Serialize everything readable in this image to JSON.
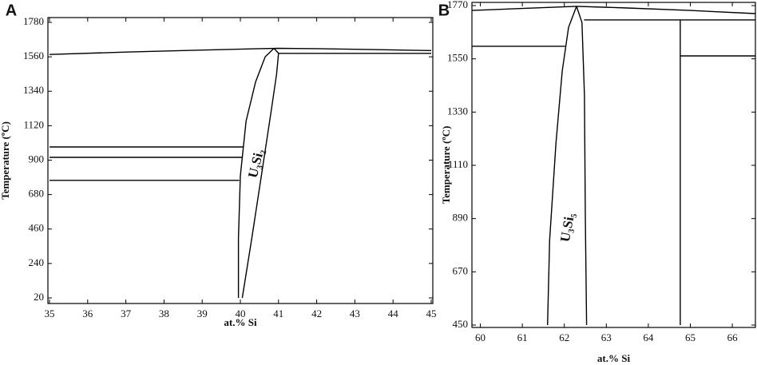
{
  "chart_data": [
    {
      "type": "line",
      "label": "A",
      "x_label": "at.% Si",
      "y_label": "Temperature (ºC)",
      "annotation": "U₃Si₂",
      "xlim": [
        35,
        45
      ],
      "ylim": [
        20,
        1780
      ],
      "xticks": [
        35,
        36,
        37,
        38,
        39,
        40,
        41,
        42,
        43,
        44,
        45
      ],
      "yticks": [
        20,
        240,
        460,
        680,
        900,
        1120,
        1340,
        1560,
        1780
      ],
      "series": [
        {
          "color": "#000000",
          "x": [
            35,
            37,
            39,
            40.5,
            41,
            42,
            43.5,
            45
          ],
          "values": [
            1575,
            1590,
            1603,
            1612,
            1614,
            1612,
            1606,
            1600
          ]
        },
        {
          "color": "#000000",
          "x": [
            35,
            40.08
          ],
          "values": [
            984,
            984
          ]
        },
        {
          "color": "#000000",
          "x": [
            35,
            40.05
          ],
          "values": [
            918,
            918
          ]
        },
        {
          "color": "#000000",
          "x": [
            35,
            39.97
          ],
          "values": [
            771,
            771
          ]
        },
        {
          "color": "#000000",
          "x": [
            41.0,
            45
          ],
          "values": [
            1582,
            1582
          ]
        },
        {
          "color": "#000000",
          "x": [
            39.95,
            39.95,
            40.0,
            40.15,
            40.4,
            40.65,
            40.88
          ],
          "values": [
            20,
            400,
            800,
            1150,
            1400,
            1560,
            1614
          ]
        },
        {
          "color": "#000000",
          "x": [
            40.05,
            40.3,
            40.55,
            40.8,
            40.95,
            41.0,
            40.88
          ],
          "values": [
            20,
            400,
            800,
            1200,
            1450,
            1582,
            1614
          ]
        }
      ]
    },
    {
      "type": "line",
      "label": "B",
      "x_label": "at.% Si",
      "y_label": "Temperature (ºC)",
      "annotation": "U₃Si₅",
      "xlim": [
        59.8,
        66.55
      ],
      "ylim": [
        450,
        1770
      ],
      "xticks": [
        60,
        61,
        62,
        63,
        64,
        65,
        66
      ],
      "yticks": [
        450,
        670,
        890,
        1110,
        1330,
        1550,
        1770
      ],
      "series": [
        {
          "color": "#000000",
          "x": [
            59.8,
            61,
            62.29,
            63.5,
            65,
            66.55
          ],
          "values": [
            1750,
            1758,
            1767,
            1760,
            1750,
            1737
          ]
        },
        {
          "color": "#000000",
          "x": [
            59.8,
            62.02
          ],
          "values": [
            1602,
            1602
          ]
        },
        {
          "color": "#000000",
          "x": [
            62.47,
            66.55
          ],
          "values": [
            1711,
            1711
          ]
        },
        {
          "color": "#000000",
          "x": [
            64.76,
            64.76
          ],
          "values": [
            450,
            1711
          ]
        },
        {
          "color": "#000000",
          "x": [
            64.76,
            66.55
          ],
          "values": [
            1562,
            1562
          ]
        },
        {
          "color": "#000000",
          "x": [
            61.6,
            61.65,
            61.8,
            61.95,
            62.1,
            62.29
          ],
          "values": [
            450,
            800,
            1200,
            1500,
            1680,
            1767
          ]
        },
        {
          "color": "#000000",
          "x": [
            62.29,
            62.42,
            62.48,
            62.5,
            62.53
          ],
          "values": [
            1767,
            1700,
            1400,
            900,
            450
          ]
        }
      ]
    }
  ]
}
